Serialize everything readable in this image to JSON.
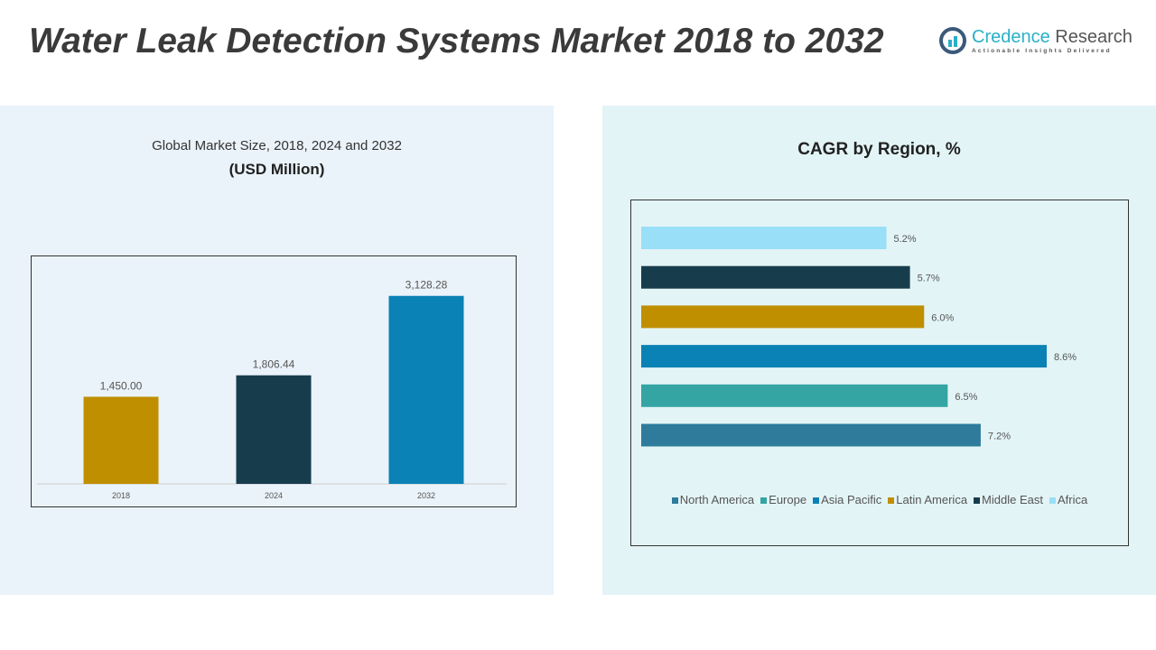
{
  "title": "Water Leak Detection Systems Market 2018 to 2032",
  "logo": {
    "name_a": "Credence",
    "name_b": " Research",
    "tagline": "Actionable Insights Delivered"
  },
  "chart_data": [
    {
      "type": "bar",
      "title": "Global Market Size, 2018, 2024 and 2032",
      "subtitle": "(USD Million)",
      "categories": [
        "2018",
        "2024",
        "2032"
      ],
      "values": [
        1450.0,
        1806.44,
        3128.28
      ],
      "labels": [
        "1,450.00",
        "1,806.44",
        "3,128.28"
      ],
      "colors": [
        "#bf8f00",
        "#173d4d",
        "#0b82b5"
      ],
      "ylim": [
        0,
        3500
      ],
      "grid": false
    },
    {
      "type": "bar",
      "orientation": "horizontal",
      "title": "CAGR by Region, %",
      "categories": [
        "Africa",
        "Middle East",
        "Latin America",
        "Asia Pacific",
        "Europe",
        "North America"
      ],
      "values": [
        5.2,
        5.7,
        6.0,
        8.6,
        6.5,
        7.2
      ],
      "labels": [
        "5.2%",
        "5.7%",
        "6.0%",
        "8.6%",
        "6.5%",
        "7.2%"
      ],
      "colors": [
        "#99dff7",
        "#173d4d",
        "#bf8f00",
        "#0b82b5",
        "#34a5a2",
        "#2e7b9c"
      ],
      "legend": {
        "placement": "bottom",
        "entries": [
          {
            "name": "North America",
            "color": "#2e7b9c"
          },
          {
            "name": "Europe",
            "color": "#34a5a2"
          },
          {
            "name": "Asia Pacific",
            "color": "#0b82b5"
          },
          {
            "name": "Latin America",
            "color": "#bf8f00"
          },
          {
            "name": "Middle East",
            "color": "#173d4d"
          },
          {
            "name": "Africa",
            "color": "#99dff7"
          }
        ]
      },
      "xlim": [
        0,
        9
      ],
      "grid": false
    }
  ]
}
